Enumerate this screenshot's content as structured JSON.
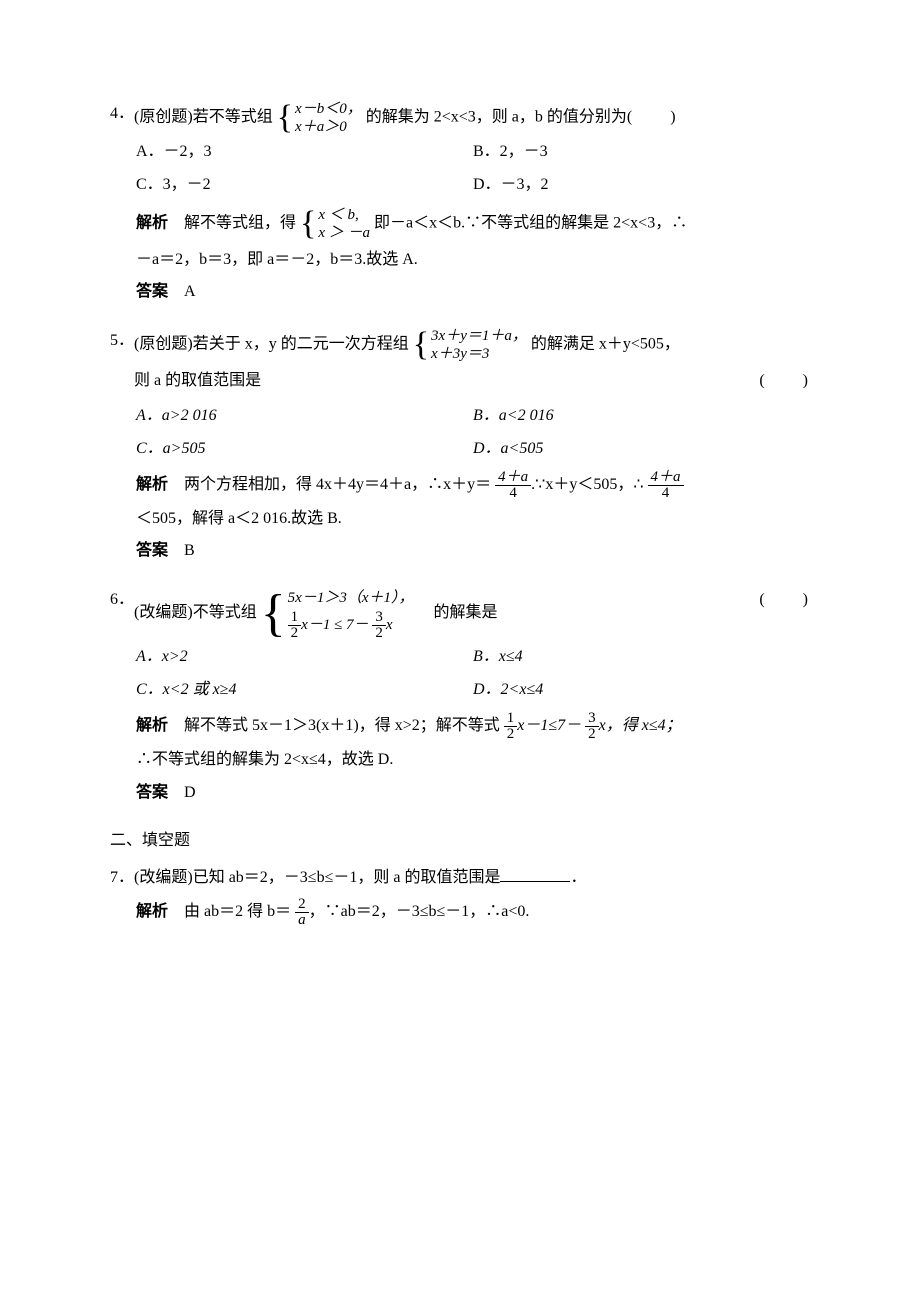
{
  "page": {
    "background_color": "#ffffff",
    "text_color": "#000000",
    "font_family": "SimSun",
    "base_font_size_pt": 12
  },
  "q4": {
    "num": "4．",
    "tag": "(原创题)",
    "stem_before": "若不等式组",
    "sys_line1": "x－b＜0，",
    "sys_line2": "x＋a＞0",
    "stem_after": "的解集为 2<x<3，则 a，b 的值分别为",
    "paren": "(　　)",
    "choice_a": "A．－2，3",
    "choice_b": "B．2，－3",
    "choice_c": "C．3，－2",
    "choice_d": "D．－3，2",
    "expl_label": "解析",
    "expl_part1": "解不等式组，得",
    "expl_sys_line1": "x ＜ b,",
    "expl_sys_line2": "x ＞ －a",
    "expl_part2": "即－a＜x＜b.∵不等式组的解集是 2<x<3，∴",
    "expl_part3": "－a＝2，b＝3，即 a＝－2，b＝3.故选 A.",
    "ans_label": "答案",
    "ans_value": "A"
  },
  "q5": {
    "num": "5．",
    "tag": "(原创题)",
    "stem_before": "若关于 x，y 的二元一次方程组",
    "sys_line1": "3x＋y＝1＋a，",
    "sys_line2": "x＋3y＝3",
    "stem_after": "的解满足 x＋y<505，",
    "stem_line2": "则 a 的取值范围是",
    "paren": "(　　)",
    "choice_a": "A．a>2 016",
    "choice_b": "B．a<2 016",
    "choice_c": "C．a>505",
    "choice_d": "D．a<505",
    "expl_label": "解析",
    "expl_part1": "两个方程相加，得 4x＋4y＝4＋a，∴x＋y＝",
    "frac1_num": "4＋a",
    "frac1_den": "4",
    "expl_part2": ".∵x＋y＜505，∴",
    "frac2_num": "4＋a",
    "frac2_den": "4",
    "expl_part3": "＜505，解得 a＜2 016.故选 B.",
    "ans_label": "答案",
    "ans_value": "B"
  },
  "q6": {
    "num": "6．",
    "tag": "(改编题)",
    "stem_before": "不等式组",
    "sys_line1_a": "5x－1＞3（x＋1），",
    "sys_line2_f1_num": "1",
    "sys_line2_f1_den": "2",
    "sys_line2_mid": "x－1 ≤ 7－",
    "sys_line2_f2_num": "3",
    "sys_line2_f2_den": "2",
    "sys_line2_end": "x",
    "stem_after": "的解集是",
    "paren": "(　　)",
    "choice_a": "A．x>2",
    "choice_b": "B．x≤4",
    "choice_c": "C．x<2 或 x≥4",
    "choice_d": "D．2<x≤4",
    "expl_label": "解析",
    "expl_part1": "解不等式 5x－1＞3(x＋1)，得 x>2；解不等式",
    "ef1_num": "1",
    "ef1_den": "2",
    "expl_mid1": "x－1≤7－",
    "ef2_num": "3",
    "ef2_den": "2",
    "expl_mid2": "x，得 x≤4；",
    "expl_part2": "∴不等式组的解集为 2<x≤4，故选 D.",
    "ans_label": "答案",
    "ans_value": "D"
  },
  "section2": "二、填空题",
  "q7": {
    "num": "7．",
    "tag": "(改编题)",
    "stem_before": "已知 ab＝2，－3≤b≤－1，则 a 的取值范围是",
    "stem_after": "．",
    "expl_label": "解析",
    "expl_part1": "由 ab＝2 得 b＝",
    "f_num": "2",
    "f_den": "a",
    "expl_part2": "，∵ab＝2，－3≤b≤－1，∴a<0."
  }
}
